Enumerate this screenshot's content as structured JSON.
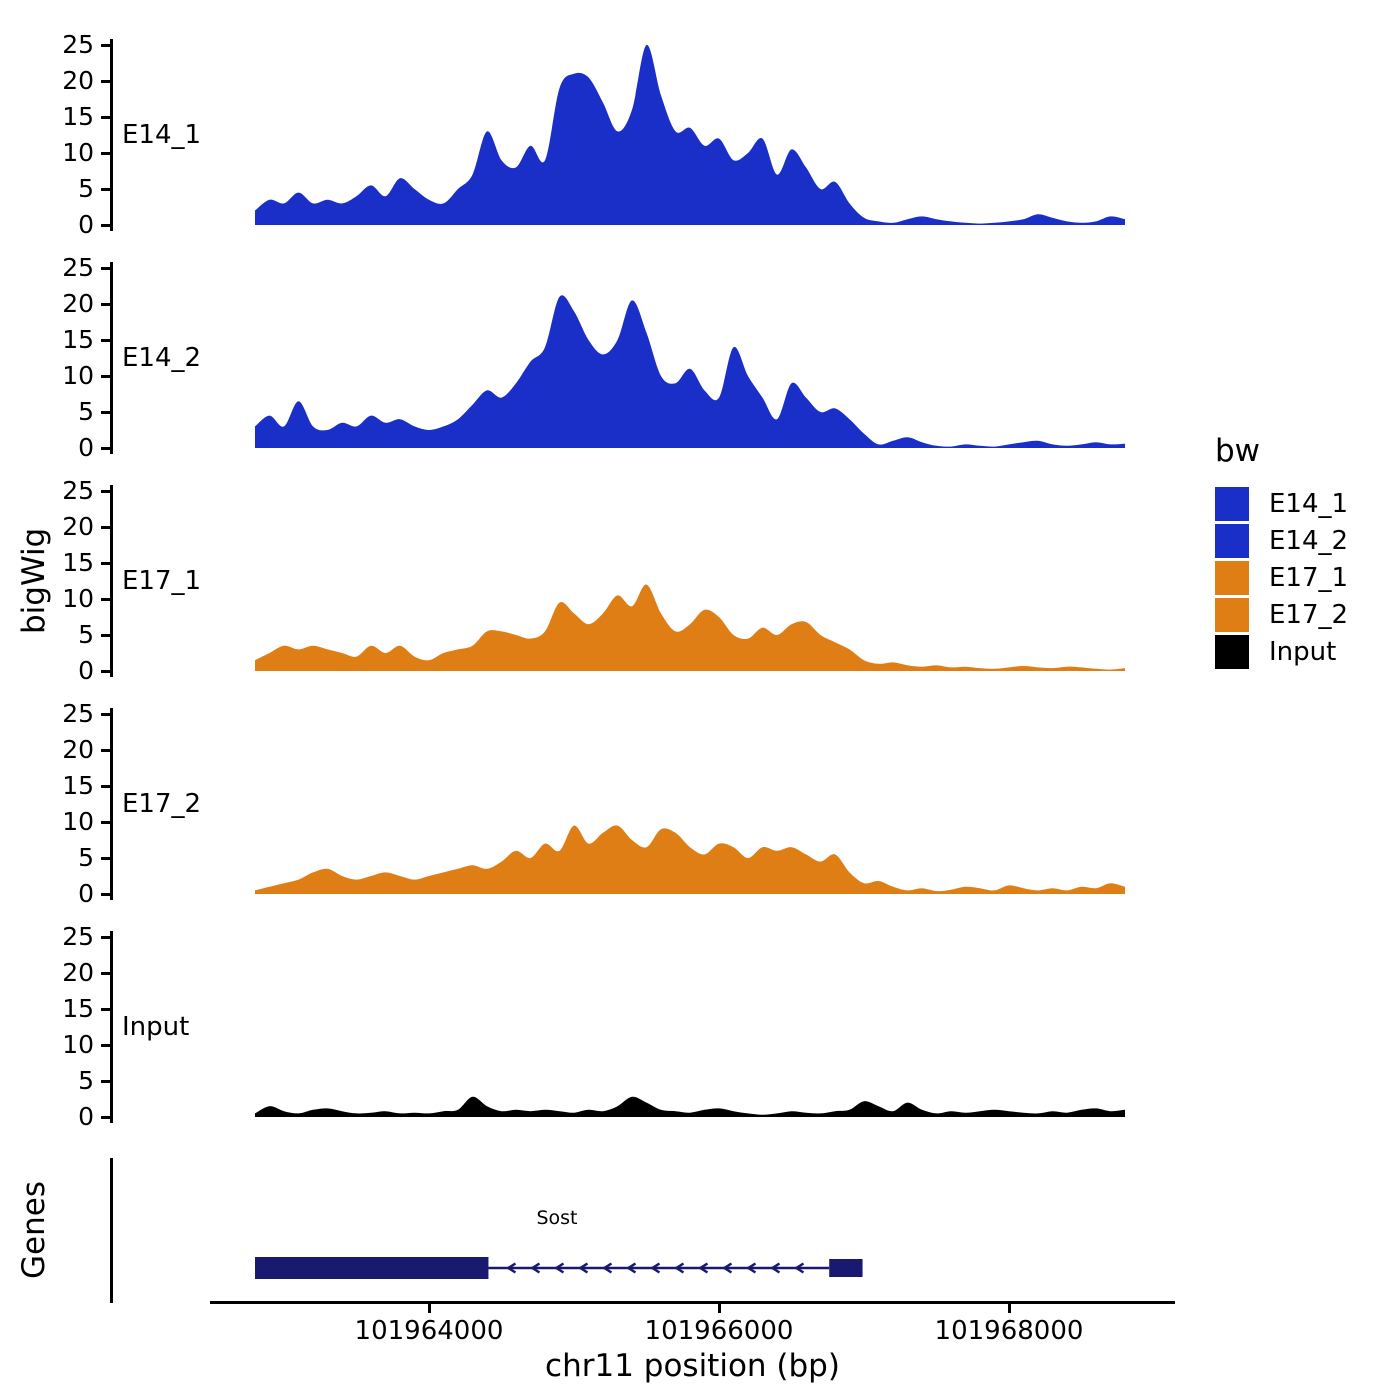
{
  "figure": {
    "y_axis_label": "bigWig",
    "genes_axis_label": "Genes",
    "x_axis_label": "chr11 position (bp)",
    "x_tick_labels": [
      "101964000",
      "101966000",
      "101968000"
    ],
    "y_ticks": [
      0,
      5,
      10,
      15,
      20,
      25
    ]
  },
  "legend": {
    "title": "bw",
    "entries": [
      {
        "label": "E14_1",
        "color": "#1A2FC8"
      },
      {
        "label": "E14_2",
        "color": "#1A2FC8"
      },
      {
        "label": "E17_1",
        "color": "#E07E16"
      },
      {
        "label": "E17_2",
        "color": "#E07E16"
      },
      {
        "label": "Input",
        "color": "#000000"
      }
    ]
  },
  "gene_track": {
    "gene_name": "Sost",
    "color": "#191970",
    "strand": "-",
    "exon1": {
      "start": 101962800,
      "end": 101964410
    },
    "intron": {
      "start": 101964410,
      "end": 101966760
    },
    "exon2": {
      "start": 101966760,
      "end": 101966990
    }
  },
  "chart_data": {
    "type": "area",
    "title": "",
    "xlabel": "chr11 position (bp)",
    "ylabel": "bigWig",
    "x_range": [
      101962800,
      101968800
    ],
    "x_start": 101962800,
    "x_step": 100,
    "y_range": [
      0,
      25
    ],
    "y_ticks": [
      0,
      5,
      10,
      15,
      20,
      25
    ],
    "x_ticks": [
      101964000,
      101966000,
      101968000
    ],
    "facets": [
      "E14_1",
      "E14_2",
      "E17_1",
      "E17_2",
      "Input"
    ],
    "series": [
      {
        "name": "E14_1",
        "color": "#1A2FC8",
        "values": [
          2,
          3.5,
          3,
          4.5,
          3,
          3.5,
          3,
          4,
          5.5,
          4,
          6.5,
          5,
          3.5,
          3,
          5,
          7,
          13,
          9,
          8,
          11,
          9,
          19,
          21,
          20.5,
          17,
          13,
          16,
          25,
          18,
          13,
          13.5,
          11,
          12,
          9,
          10,
          12,
          7,
          10.5,
          8,
          5,
          6,
          3,
          1,
          0.5,
          0.3,
          0.8,
          1.2,
          0.8,
          0.5,
          0.3,
          0.2,
          0.3,
          0.5,
          0.8,
          1.5,
          1,
          0.5,
          0.3,
          0.5,
          1.2,
          0.8
        ]
      },
      {
        "name": "E14_2",
        "color": "#1A2FC8",
        "values": [
          3,
          4.5,
          3,
          6.5,
          3,
          2.5,
          3.5,
          3,
          4.5,
          3.5,
          4,
          3,
          2.5,
          3,
          4,
          6,
          8,
          7,
          9,
          12,
          14,
          21,
          19,
          15,
          13,
          15,
          20.5,
          16,
          10,
          9,
          11,
          8,
          7,
          14,
          10,
          7,
          4,
          9,
          7,
          5,
          5.5,
          4,
          2,
          0.5,
          1,
          1.5,
          0.8,
          0.3,
          0.2,
          0.5,
          0.3,
          0.2,
          0.5,
          0.8,
          1,
          0.5,
          0.3,
          0.5,
          0.8,
          0.5,
          0.6
        ]
      },
      {
        "name": "E17_1",
        "color": "#E07E16",
        "values": [
          1.5,
          2.5,
          3.5,
          3,
          3.5,
          3,
          2.5,
          2,
          3.5,
          2.5,
          3.5,
          2,
          1.5,
          2.5,
          3,
          3.5,
          5.5,
          5.5,
          5,
          4.5,
          5.5,
          9.5,
          8,
          6.5,
          8,
          10.5,
          9,
          12,
          8,
          5.5,
          6.5,
          8.5,
          7.5,
          5,
          4.5,
          6,
          5,
          6.5,
          6.8,
          5,
          4,
          3,
          1.5,
          1,
          1.2,
          0.8,
          0.6,
          0.8,
          0.5,
          0.6,
          0.4,
          0.3,
          0.5,
          0.7,
          0.5,
          0.4,
          0.6,
          0.5,
          0.3,
          0.2,
          0.4
        ]
      },
      {
        "name": "E17_2",
        "color": "#E07E16",
        "values": [
          0.5,
          1,
          1.5,
          2,
          3,
          3.5,
          2.5,
          2,
          2.5,
          3,
          2.5,
          2,
          2.5,
          3,
          3.5,
          4,
          3.5,
          4.5,
          6,
          5,
          7,
          6,
          9.5,
          7,
          8.5,
          9.5,
          7.5,
          6.5,
          9,
          8.5,
          6.5,
          5.5,
          7,
          6.5,
          5,
          6.5,
          6,
          6.5,
          5.5,
          4.5,
          5.5,
          3,
          1.5,
          1.8,
          1,
          0.5,
          0.8,
          0.4,
          0.6,
          1,
          0.8,
          0.5,
          1.2,
          0.8,
          0.5,
          0.8,
          0.5,
          1,
          0.8,
          1.5,
          1
        ]
      },
      {
        "name": "Input",
        "color": "#000000",
        "values": [
          0.5,
          1.5,
          0.8,
          0.5,
          1,
          1.2,
          0.8,
          0.5,
          0.6,
          0.8,
          0.5,
          0.6,
          0.5,
          0.8,
          1,
          2.8,
          1.5,
          0.8,
          1,
          0.8,
          1,
          0.8,
          0.6,
          1,
          0.8,
          1.5,
          2.8,
          2,
          1,
          0.8,
          0.6,
          1,
          1.2,
          0.8,
          0.5,
          0.3,
          0.5,
          0.8,
          0.6,
          0.5,
          0.8,
          1,
          2.2,
          1.5,
          0.8,
          2,
          1,
          0.5,
          0.8,
          0.6,
          0.8,
          1,
          0.8,
          0.6,
          0.5,
          0.8,
          0.6,
          1,
          1.2,
          0.8,
          1
        ]
      }
    ]
  }
}
